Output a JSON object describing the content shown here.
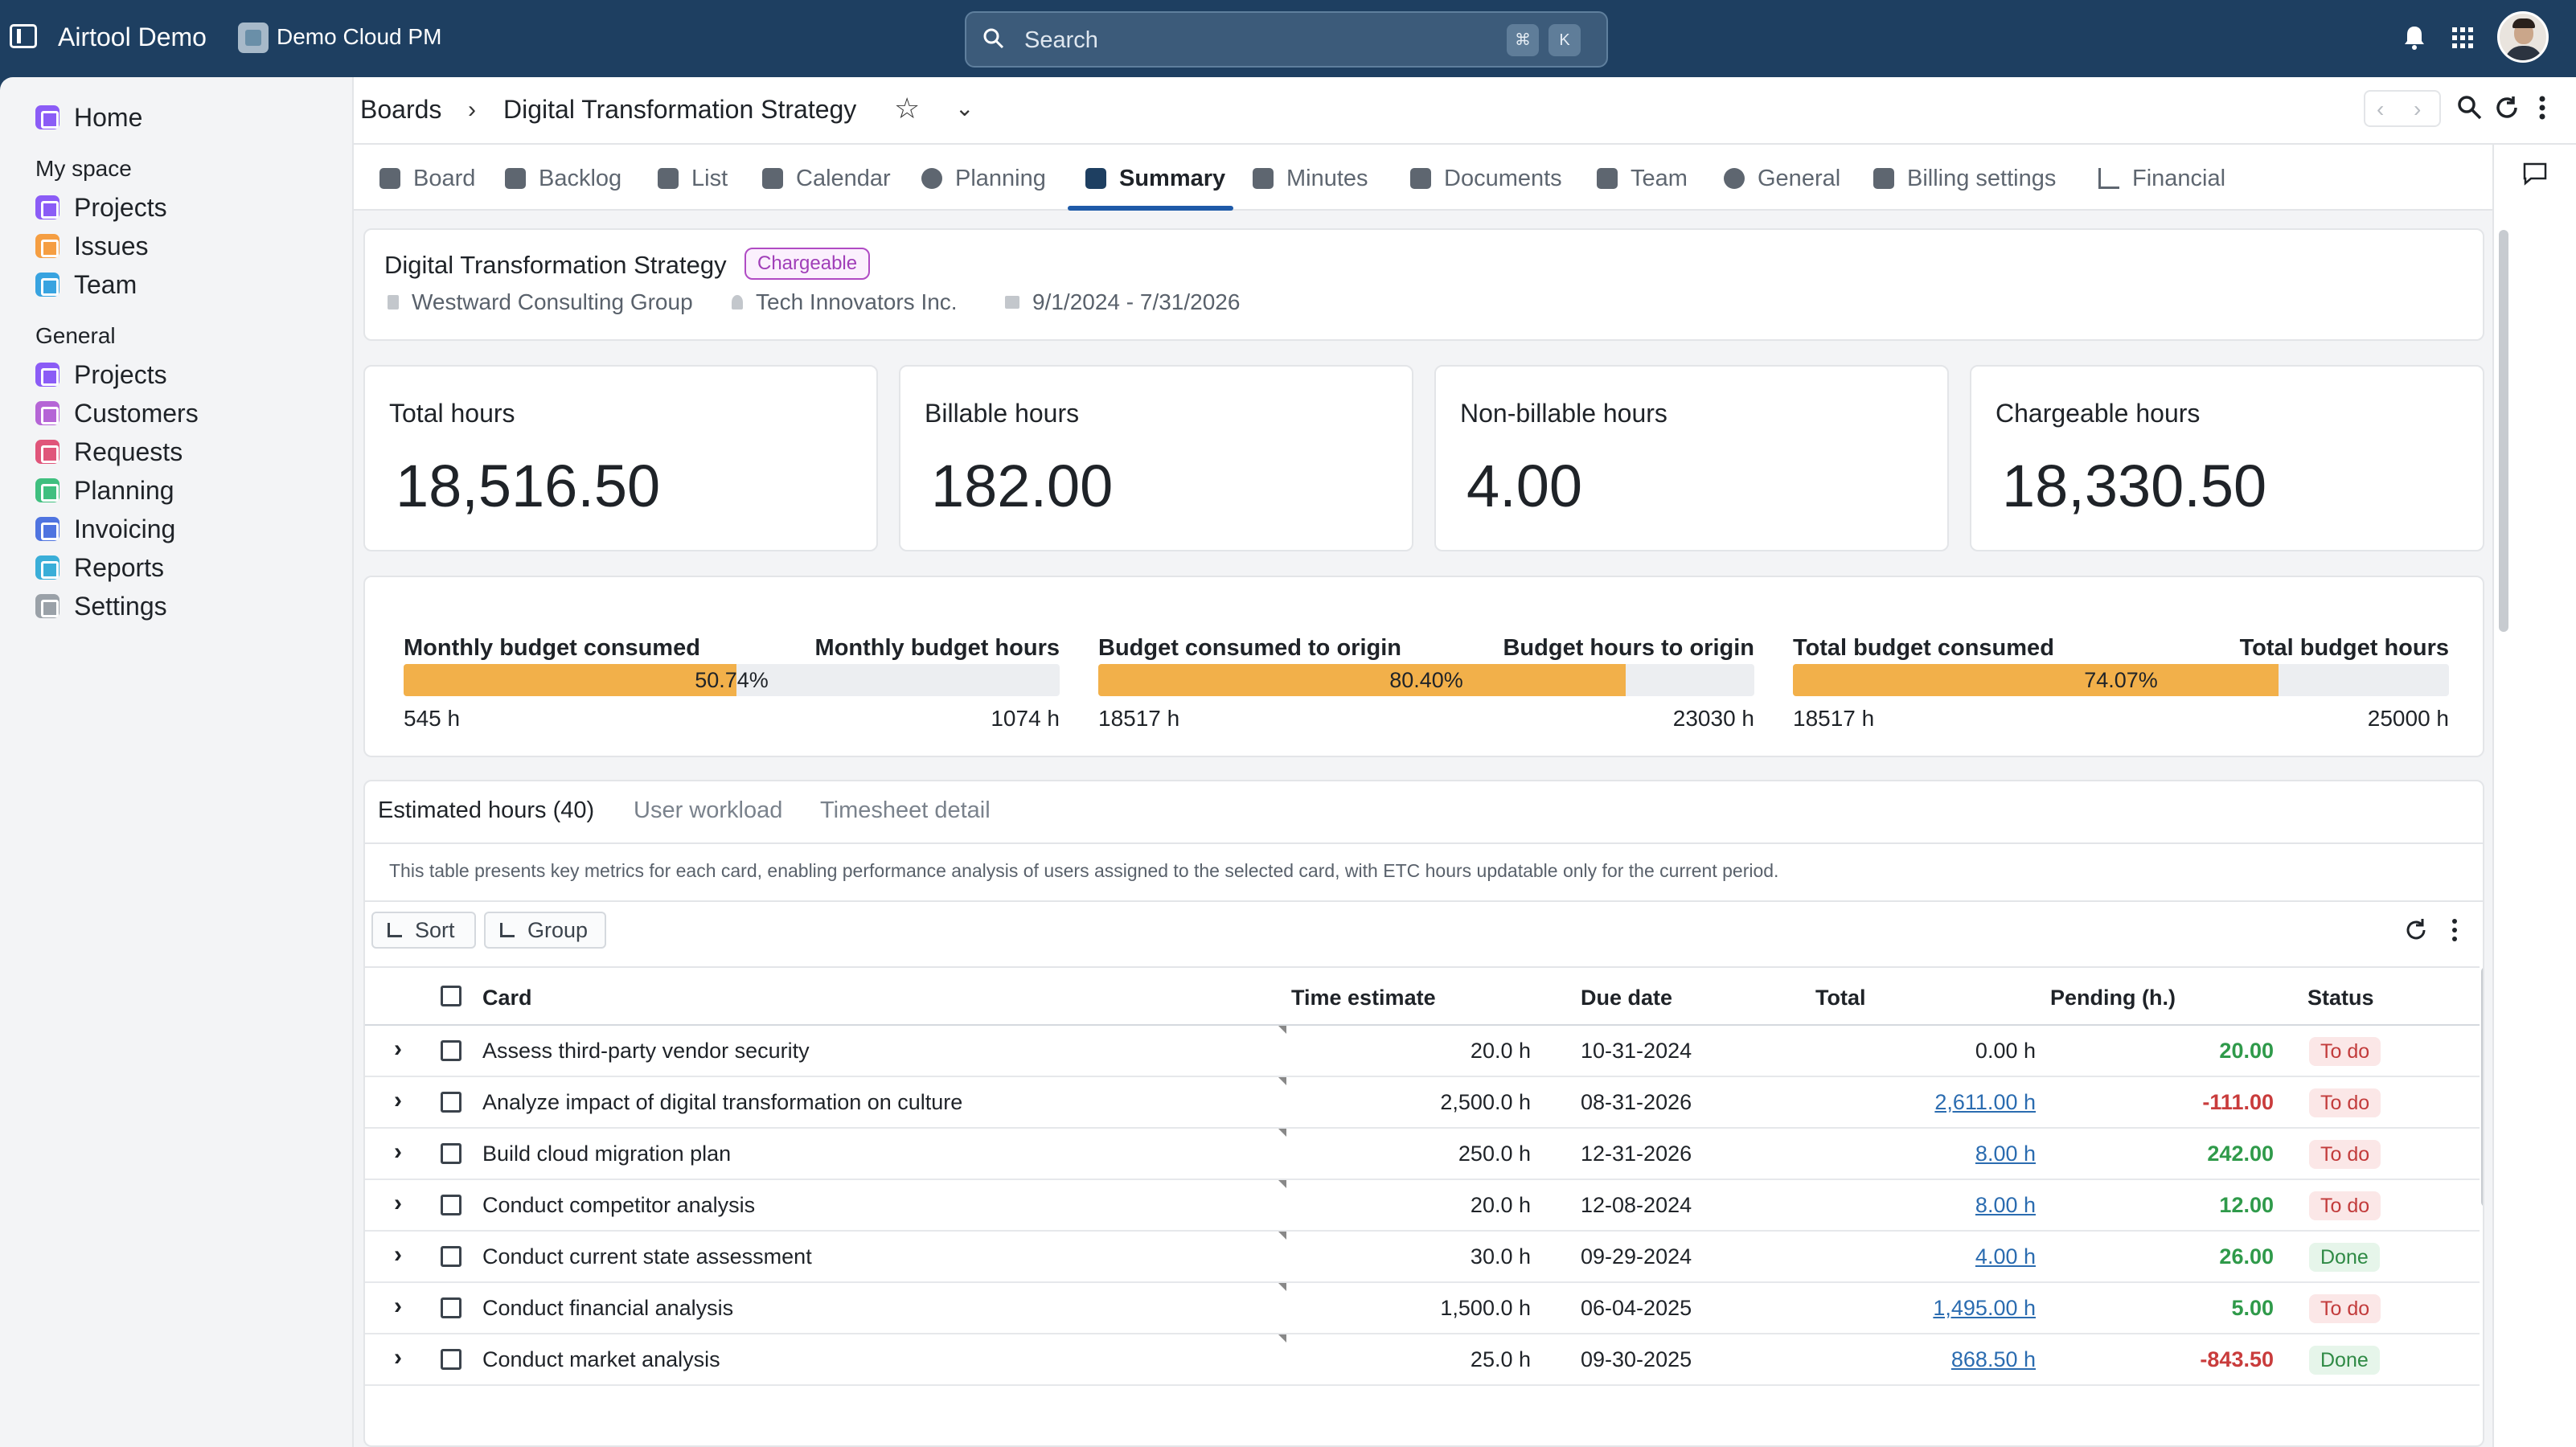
{
  "topbar": {
    "app_name": "Airtool Demo",
    "workspace": "Demo Cloud PM",
    "search_placeholder": "Search",
    "shortcut_key1": "⌘",
    "shortcut_key2": "K"
  },
  "sidebar": {
    "home": "Home",
    "my_space_heading": "My space",
    "my_space": [
      {
        "label": "Projects",
        "color": "#8b5cf6"
      },
      {
        "label": "Issues",
        "color": "#f59e42"
      },
      {
        "label": "Team",
        "color": "#38a3e0"
      }
    ],
    "general_heading": "General",
    "general": [
      {
        "label": "Projects",
        "color": "#8b5cf6"
      },
      {
        "label": "Customers",
        "color": "#b565d6"
      },
      {
        "label": "Requests",
        "color": "#e0557a"
      },
      {
        "label": "Planning",
        "color": "#3fbf7f"
      },
      {
        "label": "Invoicing",
        "color": "#4f74e0"
      },
      {
        "label": "Reports",
        "color": "#3aaed8"
      },
      {
        "label": "Settings",
        "color": "#9aa1a8"
      }
    ]
  },
  "breadcrumb": {
    "root": "Boards",
    "separator": "›",
    "current": "Digital Transformation Strategy"
  },
  "tabs": [
    "Board",
    "Backlog",
    "List",
    "Calendar",
    "Planning",
    "Summary",
    "Minutes",
    "Documents",
    "Team",
    "General",
    "Billing settings",
    "Financial"
  ],
  "active_tab": "Summary",
  "project": {
    "title": "Digital Transformation Strategy",
    "badge": "Chargeable",
    "client": "Westward Consulting Group",
    "contact": "Tech Innovators Inc.",
    "dates": "9/1/2024 - 7/31/2026"
  },
  "kpis": [
    {
      "label": "Total hours",
      "value": "18,516.50"
    },
    {
      "label": "Billable hours",
      "value": "182.00"
    },
    {
      "label": "Non-billable hours",
      "value": "4.00"
    },
    {
      "label": "Chargeable hours",
      "value": "18,330.50"
    }
  ],
  "budgets": [
    {
      "label_left": "Monthly budget consumed",
      "label_right": "Monthly budget hours",
      "percent_text": "50.74%",
      "fraction": 0.5074,
      "consumed": "545 h",
      "total": "1074 h"
    },
    {
      "label_left": "Budget consumed to origin",
      "label_right": "Budget hours to origin",
      "percent_text": "80.40%",
      "fraction": 0.804,
      "consumed": "18517 h",
      "total": "23030 h"
    },
    {
      "label_left": "Total budget consumed",
      "label_right": "Total budget hours",
      "percent_text": "74.07%",
      "fraction": 0.7407,
      "consumed": "18517 h",
      "total": "25000 h"
    }
  ],
  "section_tabs": [
    "Estimated hours (40)",
    "User workload",
    "Timesheet detail"
  ],
  "description": "This table presents key metrics for each card, enabling performance analysis of users assigned to the selected card, with ETC hours updatable only for the current period.",
  "toolbar": {
    "sort": "Sort",
    "group": "Group"
  },
  "table": {
    "headers": {
      "card": "Card",
      "time_estimate": "Time estimate",
      "due_date": "Due date",
      "total": "Total",
      "pending": "Pending (h.)",
      "status": "Status"
    },
    "rows": [
      {
        "card": "Assess third-party vendor security",
        "time_estimate": "20.0 h",
        "due_date": "10-31-2024",
        "total": "0.00 h",
        "total_link": false,
        "pending": "20.00",
        "pending_sign": "pos",
        "status": "To do"
      },
      {
        "card": "Analyze impact of digital transformation on culture",
        "time_estimate": "2,500.0 h",
        "due_date": "08-31-2026",
        "total": "2,611.00 h",
        "total_link": true,
        "pending": "-111.00",
        "pending_sign": "neg",
        "status": "To do"
      },
      {
        "card": "Build cloud migration plan",
        "time_estimate": "250.0 h",
        "due_date": "12-31-2026",
        "total": "8.00 h",
        "total_link": true,
        "pending": "242.00",
        "pending_sign": "pos",
        "status": "To do"
      },
      {
        "card": "Conduct competitor analysis",
        "time_estimate": "20.0 h",
        "due_date": "12-08-2024",
        "total": "8.00 h",
        "total_link": true,
        "pending": "12.00",
        "pending_sign": "pos",
        "status": "To do"
      },
      {
        "card": "Conduct current state assessment",
        "time_estimate": "30.0 h",
        "due_date": "09-29-2024",
        "total": "4.00 h",
        "total_link": true,
        "pending": "26.00",
        "pending_sign": "pos",
        "status": "Done"
      },
      {
        "card": "Conduct financial analysis",
        "time_estimate": "1,500.0 h",
        "due_date": "06-04-2025",
        "total": "1,495.00 h",
        "total_link": true,
        "pending": "5.00",
        "pending_sign": "pos",
        "status": "To do"
      },
      {
        "card": "Conduct market analysis",
        "time_estimate": "25.0 h",
        "due_date": "09-30-2025",
        "total": "868.50 h",
        "total_link": true,
        "pending": "-843.50",
        "pending_sign": "neg",
        "status": "Done"
      }
    ]
  },
  "colors": {
    "topbar": "#1e3f61",
    "accent": "#1e5aa8",
    "budget_fill": "#f2b04a",
    "positive": "#2f9a4a",
    "negative": "#c93c3c"
  }
}
